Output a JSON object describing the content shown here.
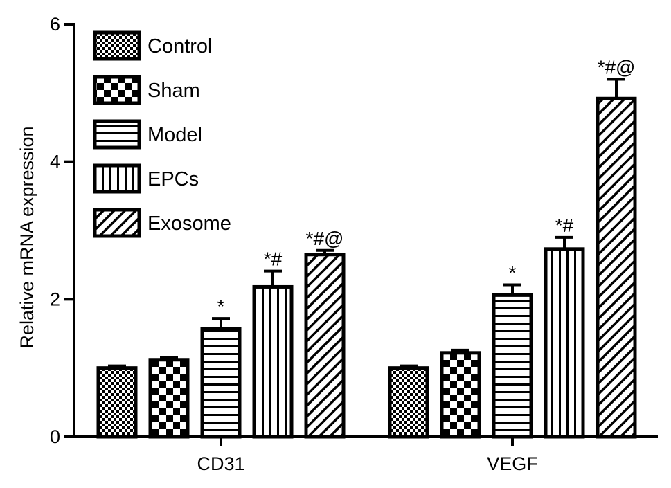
{
  "chart_data": {
    "type": "bar",
    "title": "",
    "xlabel": "",
    "ylabel": "Relative mRNA expression",
    "ylim": [
      0,
      6
    ],
    "yticks": [
      "0",
      "2",
      "4",
      "6"
    ],
    "grid": false,
    "legend_position": "top-left",
    "categories": [
      "CD31",
      "VEGF"
    ],
    "series": [
      {
        "name": "Control",
        "pattern": "fine-checker",
        "values": [
          1.0,
          1.0
        ],
        "errors": [
          0.03,
          0.03
        ],
        "annotations": [
          "",
          ""
        ]
      },
      {
        "name": "Sham",
        "pattern": "coarse-checker",
        "values": [
          1.12,
          1.22
        ],
        "errors": [
          0.03,
          0.04
        ],
        "annotations": [
          "",
          ""
        ]
      },
      {
        "name": "Model",
        "pattern": "horizontal-lines",
        "values": [
          1.57,
          2.06
        ],
        "errors": [
          0.15,
          0.15
        ],
        "annotations": [
          "*",
          "*"
        ]
      },
      {
        "name": "EPCs",
        "pattern": "vertical-lines",
        "values": [
          2.18,
          2.73
        ],
        "errors": [
          0.23,
          0.17
        ],
        "annotations": [
          "*#",
          "*#"
        ]
      },
      {
        "name": "Exosome",
        "pattern": "diagonal-lines",
        "values": [
          2.65,
          4.92
        ],
        "errors": [
          0.06,
          0.28
        ],
        "annotations": [
          "*#@",
          "*#@"
        ]
      }
    ],
    "colors": {
      "ink": "#000000",
      "fill": "#ffffff"
    }
  }
}
